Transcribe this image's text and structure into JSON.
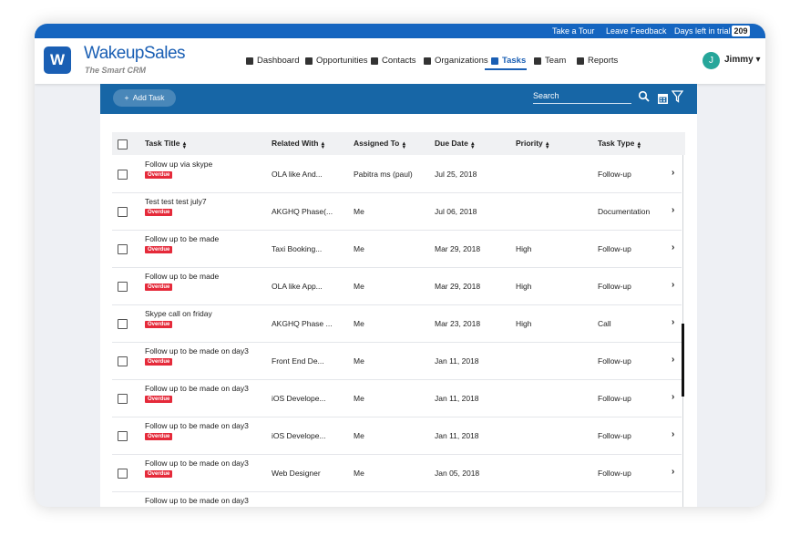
{
  "topbar": {
    "tour": "Take a Tour",
    "feedback": "Leave Feedback",
    "trial": "Days left in trial",
    "days": "209"
  },
  "header": {
    "logo": "W",
    "brand": "WakeupSales",
    "tagline": "The Smart CRM",
    "nav": [
      "Dashboard",
      "Opportunities",
      "Contacts",
      "Organizations",
      "Tasks",
      "Team",
      "Reports"
    ],
    "avatar": "J",
    "user": "Jimmy"
  },
  "toolbar": {
    "add": "Add Task",
    "search": "Search"
  },
  "table": {
    "columns": [
      "Task Title",
      "Related With",
      "Assigned To",
      "Due Date",
      "Priority",
      "Task Type"
    ],
    "rows": [
      {
        "title": "Follow up via skype",
        "badge": "Overdue",
        "related": "OLA like And...",
        "assigned": "Pabitra ms (paul)",
        "due": "Jul 25, 2018",
        "priority": null,
        "type": "Follow-up"
      },
      {
        "title": "Test test test july7",
        "badge": "Overdue",
        "related": "AKGHQ Phase(...",
        "assigned": "Me",
        "due": "Jul 06, 2018",
        "priority": null,
        "type": "Documentation"
      },
      {
        "title": "Follow up to be made",
        "badge": "Overdue",
        "related": "Taxi Booking...",
        "assigned": "Me",
        "due": "Mar 29, 2018",
        "priority": "High",
        "type": "Follow-up"
      },
      {
        "title": "Follow up to be made",
        "badge": "Overdue",
        "related": "OLA like App...",
        "assigned": "Me",
        "due": "Mar 29, 2018",
        "priority": "High",
        "type": "Follow-up"
      },
      {
        "title": "Skype call on friday",
        "badge": "Overdue",
        "related": "AKGHQ Phase ...",
        "assigned": "Me",
        "due": "Mar 23, 2018",
        "priority": "High",
        "type": "Call"
      },
      {
        "title": "Follow up to be made on day3",
        "badge": "Overdue",
        "related": "Front End De...",
        "assigned": "Me",
        "due": "Jan 11, 2018",
        "priority": null,
        "type": "Follow-up"
      },
      {
        "title": "Follow up to be made on day3",
        "badge": "Overdue",
        "related": "iOS Develope...",
        "assigned": "Me",
        "due": "Jan 11, 2018",
        "priority": null,
        "type": "Follow-up"
      },
      {
        "title": "Follow up to be made on day3",
        "badge": "Overdue",
        "related": "iOS Develope...",
        "assigned": "Me",
        "due": "Jan 11, 2018",
        "priority": null,
        "type": "Follow-up"
      },
      {
        "title": "Follow up to be made on day3",
        "badge": "Overdue",
        "related": "Web Designer",
        "assigned": "Me",
        "due": "Jan 05, 2018",
        "priority": null,
        "type": "Follow-up"
      },
      {
        "title": "Follow up to be made on day3"
      }
    ]
  }
}
